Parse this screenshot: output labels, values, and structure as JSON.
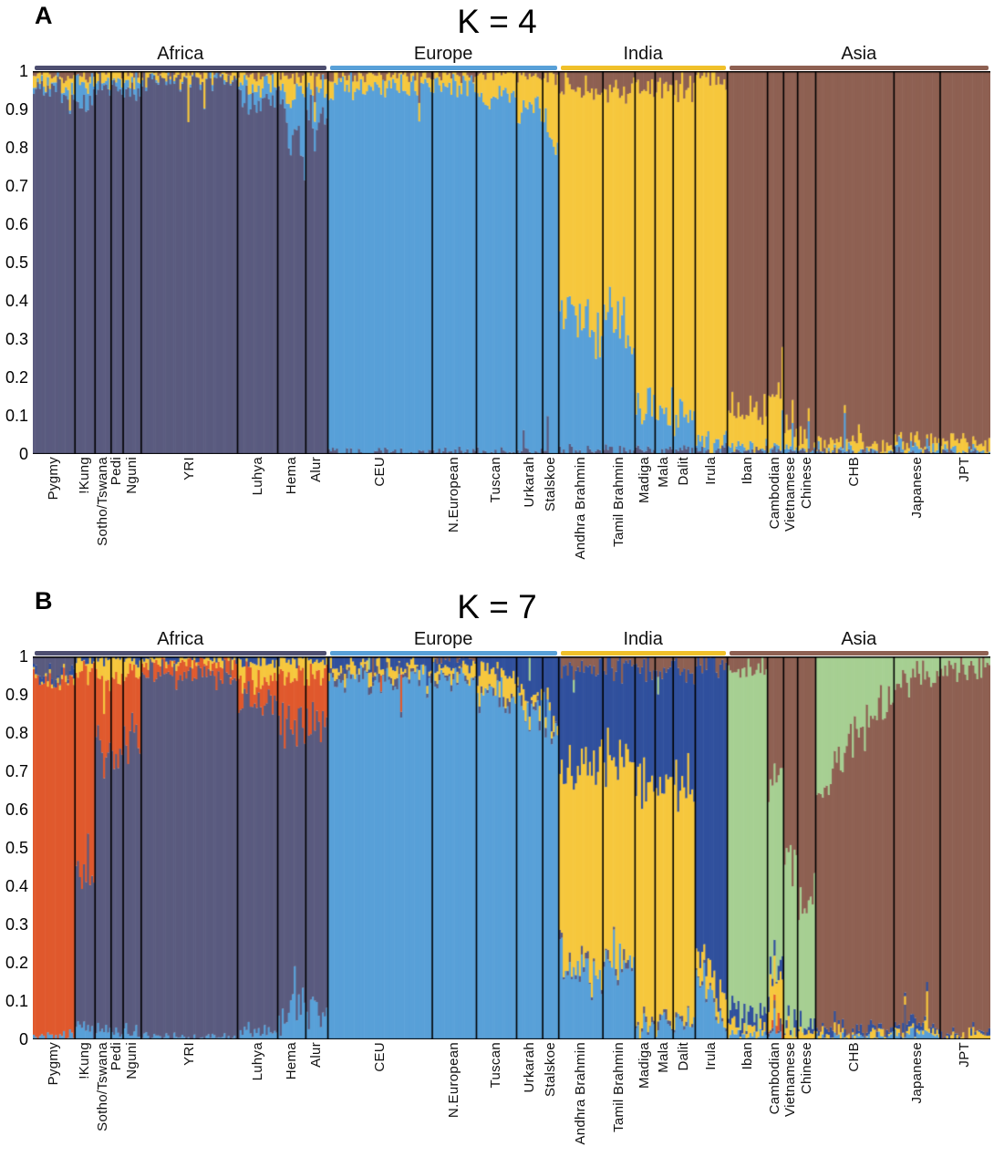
{
  "figure": {
    "background": "#ffffff"
  },
  "chart_data": [
    {
      "panel": "A",
      "title": "K = 4",
      "k": 4,
      "type": "bar",
      "subtype": "stacked admixture (STRUCTURE plot), one thin bar per individual",
      "ylim": [
        0,
        1
      ],
      "grid": false,
      "y_tick_labels": [
        "1",
        "0.9",
        "0.8",
        "0.7",
        "0.6",
        "0.5",
        "0.4",
        "0.3",
        "0.2",
        "0.1",
        "0"
      ],
      "stack_order_bottom_to_top": [
        "african",
        "european",
        "indian",
        "asian"
      ],
      "component_colors": {
        "african": "#5a5b7f",
        "european": "#58a0d8",
        "indian": "#f6c73d",
        "asian": "#8e6052"
      },
      "regions": [
        {
          "name": "Africa",
          "underline_color": "#4d4e70",
          "populations": [
            "Pygmy",
            "!Kung",
            "Sotho/Tswana",
            "Pedi",
            "Nguni",
            "YRI",
            "Luhya",
            "Hema",
            "Alur"
          ]
        },
        {
          "name": "Europe",
          "underline_color": "#58a0d8",
          "populations": [
            "CEU",
            "N.European",
            "Tuscan",
            "Urkarah",
            "Stalskoe"
          ]
        },
        {
          "name": "India",
          "underline_color": "#f0c02a",
          "populations": [
            "Andhra Brahmin",
            "Tamil Brahmin",
            "Madiga",
            "Mala",
            "Dalit",
            "Irula"
          ]
        },
        {
          "name": "Asia",
          "underline_color": "#8e6052",
          "populations": [
            "Iban",
            "Cambodian",
            "Vietnamese",
            "Chinese",
            "CHB",
            "Japanese",
            "JPT"
          ]
        }
      ],
      "populations": [
        {
          "name": "Pygmy",
          "n": 21,
          "fractions": {
            "african": 0.96,
            "european": 0.01,
            "indian": 0.02,
            "asian": 0.01
          }
        },
        {
          "name": "!Kung",
          "n": 10,
          "fractions": {
            "african": 0.92,
            "european": 0.05,
            "indian": 0.02,
            "asian": 0.01
          }
        },
        {
          "name": "Sotho/Tswana",
          "n": 8,
          "fractions": {
            "african": 0.955,
            "european": 0.02,
            "indian": 0.02,
            "asian": 0.005
          }
        },
        {
          "name": "Pedi",
          "n": 6,
          "fractions": {
            "african": 0.955,
            "european": 0.02,
            "indian": 0.02,
            "asian": 0.005
          }
        },
        {
          "name": "Nguni",
          "n": 9,
          "fractions": {
            "african": 0.96,
            "european": 0.015,
            "indian": 0.02,
            "asian": 0.005
          }
        },
        {
          "name": "YRI",
          "n": 48,
          "fractions": {
            "african": 0.975,
            "european": 0.004,
            "indian": 0.016,
            "asian": 0.005
          }
        },
        {
          "name": "Luhya",
          "n": 20,
          "fractions": {
            "african": 0.93,
            "european": 0.03,
            "indian": 0.03,
            "asian": 0.01
          }
        },
        {
          "name": "Hema",
          "n": 14,
          "fractions": {
            "african": [
              0.93,
              0.78
            ],
            "european": [
              0.02,
              0.16
            ],
            "indian": 0.04,
            "asian": 0.01
          }
        },
        {
          "name": "Alur",
          "n": 11,
          "fractions": {
            "african": 0.88,
            "european": 0.07,
            "indian": 0.04,
            "asian": 0.01
          }
        },
        {
          "name": "CEU",
          "n": 52,
          "fractions": {
            "african": 0.005,
            "european": 0.955,
            "indian": 0.03,
            "asian": 0.01
          }
        },
        {
          "name": "N.European",
          "n": 22,
          "fractions": {
            "african": 0.005,
            "european": 0.96,
            "indian": 0.025,
            "asian": 0.01
          }
        },
        {
          "name": "Tuscan",
          "n": 20,
          "fractions": {
            "african": 0.005,
            "european": 0.93,
            "indian": 0.055,
            "asian": 0.01
          }
        },
        {
          "name": "Urkarah",
          "n": 13,
          "fractions": {
            "african": 0.005,
            "european": 0.9,
            "indian": 0.085,
            "asian": 0.01
          }
        },
        {
          "name": "Stalskoe",
          "n": 8,
          "fractions": {
            "african": 0.005,
            "european": [
              0.87,
              0.77
            ],
            "indian": [
              0.11,
              0.21
            ],
            "asian": 0.015
          }
        },
        {
          "name": "Andhra Brahmin",
          "n": 22,
          "fractions": {
            "african": 0.01,
            "european": [
              0.38,
              0.3
            ],
            "indian": [
              0.56,
              0.64
            ],
            "asian": 0.05
          }
        },
        {
          "name": "Tamil Brahmin",
          "n": 16,
          "fractions": {
            "african": 0.01,
            "european": [
              0.36,
              0.28
            ],
            "indian": [
              0.58,
              0.66
            ],
            "asian": 0.05
          }
        },
        {
          "name": "Madiga",
          "n": 10,
          "fractions": {
            "african": 0.01,
            "european": 0.12,
            "indian": 0.83,
            "asian": 0.04
          }
        },
        {
          "name": "Mala",
          "n": 9,
          "fractions": {
            "african": 0.01,
            "european": 0.1,
            "indian": 0.85,
            "asian": 0.04
          }
        },
        {
          "name": "Dalit",
          "n": 11,
          "fractions": {
            "african": 0.01,
            "european": 0.1,
            "indian": 0.85,
            "asian": 0.04
          }
        },
        {
          "name": "Irula",
          "n": 16,
          "fractions": {
            "african": 0.01,
            "european": 0.02,
            "indian": 0.95,
            "asian": 0.02
          }
        },
        {
          "name": "Iban",
          "n": 20,
          "fractions": {
            "african": 0.01,
            "european": 0.01,
            "indian": 0.09,
            "asian": 0.89
          }
        },
        {
          "name": "Cambodian",
          "n": 8,
          "fractions": {
            "african": 0.01,
            "european": 0.01,
            "indian": 0.14,
            "asian": 0.84
          }
        },
        {
          "name": "Vietnamese",
          "n": 7,
          "fractions": {
            "african": 0.005,
            "european": 0.01,
            "indian": 0.045,
            "asian": 0.94
          }
        },
        {
          "name": "Chinese",
          "n": 9,
          "fractions": {
            "african": 0.005,
            "european": 0.005,
            "indian": 0.03,
            "asian": 0.96
          }
        },
        {
          "name": "CHB",
          "n": 39,
          "fractions": {
            "african": 0.004,
            "european": 0.006,
            "indian": 0.02,
            "asian": 0.97
          }
        },
        {
          "name": "Japanese",
          "n": 23,
          "fractions": {
            "african": 0.005,
            "european": 0.015,
            "indian": 0.02,
            "asian": 0.96
          }
        },
        {
          "name": "JPT",
          "n": 25,
          "fractions": {
            "african": 0.004,
            "european": 0.006,
            "indian": 0.02,
            "asian": 0.97
          }
        }
      ]
    },
    {
      "panel": "B",
      "title": "K = 7",
      "k": 7,
      "type": "bar",
      "subtype": "stacked admixture (STRUCTURE plot), one thin bar per individual",
      "ylim": [
        0,
        1
      ],
      "grid": false,
      "y_tick_labels": [
        "1",
        "0.9",
        "0.8",
        "0.7",
        "0.6",
        "0.5",
        "0.4",
        "0.3",
        "0.2",
        "0.1",
        "0"
      ],
      "stack_order_bottom_to_top": [
        "blue",
        "slate",
        "orange",
        "yellow",
        "navy",
        "green",
        "brown"
      ],
      "component_colors": {
        "blue": "#58a0d8",
        "slate": "#5a5b7f",
        "orange": "#e0592d",
        "yellow": "#f6c73d",
        "navy": "#30509d",
        "green": "#a6cf92",
        "brown": "#8e6052"
      },
      "regions": [
        {
          "name": "Africa",
          "underline_color": "#4d4e70",
          "populations": [
            "Pygmy",
            "!Kung",
            "Sotho/Tswana",
            "Pedi",
            "Nguni",
            "YRI",
            "Luhya",
            "Hema",
            "Alur"
          ]
        },
        {
          "name": "Europe",
          "underline_color": "#58a0d8",
          "populations": [
            "CEU",
            "N.European",
            "Tuscan",
            "Urkarah",
            "Stalskoe"
          ]
        },
        {
          "name": "India",
          "underline_color": "#f0c02a",
          "populations": [
            "Andhra Brahmin",
            "Tamil Brahmin",
            "Madiga",
            "Mala",
            "Dalit",
            "Irula"
          ]
        },
        {
          "name": "Asia",
          "underline_color": "#8e6052",
          "populations": [
            "Iban",
            "Cambodian",
            "Vietnamese",
            "Chinese",
            "CHB",
            "Japanese",
            "JPT"
          ]
        }
      ],
      "populations": [
        {
          "name": "Pygmy",
          "n": 21,
          "stack_order": [
            "blue",
            "orange",
            "yellow",
            "navy",
            "green",
            "brown",
            "slate"
          ],
          "fractions": {
            "orange": 0.92,
            "slate": 0.05,
            "blue": 0.01,
            "yellow": 0.01,
            "navy": 0.01
          }
        },
        {
          "name": "!Kung",
          "n": 10,
          "fractions": {
            "slate": 0.42,
            "orange": 0.51,
            "blue": 0.03,
            "yellow": 0.03,
            "navy": 0.01
          }
        },
        {
          "name": "Sotho/Tswana",
          "n": 8,
          "fractions": {
            "slate": 0.74,
            "orange": 0.18,
            "yellow": 0.05,
            "blue": 0.02,
            "navy": 0.01
          }
        },
        {
          "name": "Pedi",
          "n": 6,
          "fractions": {
            "slate": 0.72,
            "orange": 0.2,
            "yellow": 0.05,
            "blue": 0.02,
            "navy": 0.01
          }
        },
        {
          "name": "Nguni",
          "n": 9,
          "fractions": {
            "slate": 0.76,
            "orange": 0.18,
            "yellow": 0.03,
            "blue": 0.02,
            "navy": 0.01
          }
        },
        {
          "name": "YRI",
          "n": 48,
          "fractions": {
            "slate": 0.95,
            "orange": 0.03,
            "yellow": 0.01,
            "blue": 0.005,
            "navy": 0.005
          }
        },
        {
          "name": "Luhya",
          "n": 20,
          "fractions": {
            "slate": 0.87,
            "orange": 0.06,
            "yellow": 0.04,
            "blue": 0.02,
            "navy": 0.01
          }
        },
        {
          "name": "Hema",
          "n": 14,
          "fractions": {
            "slate": [
              0.78,
              0.68
            ],
            "orange": 0.14,
            "blue": [
              0.03,
              0.13
            ],
            "yellow": 0.04,
            "navy": 0.01
          }
        },
        {
          "name": "Alur",
          "n": 11,
          "fractions": {
            "slate": 0.76,
            "orange": 0.13,
            "blue": 0.07,
            "yellow": 0.03,
            "navy": 0.01
          }
        },
        {
          "name": "CEU",
          "n": 52,
          "fractions": {
            "blue": 0.95,
            "yellow": 0.02,
            "navy": 0.02,
            "slate": 0.01
          }
        },
        {
          "name": "N.European",
          "n": 22,
          "fractions": {
            "blue": 0.95,
            "yellow": 0.02,
            "navy": 0.02,
            "slate": 0.005,
            "brown": 0.005
          }
        },
        {
          "name": "Tuscan",
          "n": 20,
          "fractions": {
            "blue": 0.89,
            "yellow": 0.06,
            "navy": 0.04,
            "slate": 0.01
          }
        },
        {
          "name": "Urkarah",
          "n": 13,
          "fractions": {
            "blue": 0.87,
            "navy": 0.09,
            "yellow": 0.03,
            "slate": 0.01
          }
        },
        {
          "name": "Stalskoe",
          "n": 8,
          "fractions": {
            "blue": [
              0.85,
              0.75
            ],
            "navy": [
              0.11,
              0.21
            ],
            "yellow": 0.02,
            "slate": 0.01
          }
        },
        {
          "name": "Andhra Brahmin",
          "n": 22,
          "fractions": {
            "blue": [
              0.24,
              0.15
            ],
            "yellow": [
              0.46,
              0.55
            ],
            "navy": 0.26,
            "brown": 0.03,
            "slate": 0.01
          }
        },
        {
          "name": "Tamil Brahmin",
          "n": 16,
          "fractions": {
            "blue": 0.19,
            "yellow": 0.51,
            "navy": 0.26,
            "brown": 0.03,
            "slate": 0.01
          }
        },
        {
          "name": "Madiga",
          "n": 10,
          "fractions": {
            "blue": 0.04,
            "yellow": 0.6,
            "navy": 0.31,
            "brown": 0.04,
            "slate": 0.01
          }
        },
        {
          "name": "Mala",
          "n": 9,
          "fractions": {
            "blue": 0.04,
            "yellow": 0.6,
            "navy": 0.31,
            "brown": 0.04,
            "slate": 0.01
          }
        },
        {
          "name": "Dalit",
          "n": 11,
          "fractions": {
            "blue": 0.04,
            "yellow": 0.6,
            "navy": 0.3,
            "brown": 0.05,
            "slate": 0.01
          }
        },
        {
          "name": "Irula",
          "n": 16,
          "fractions": {
            "blue": [
              0.18,
              0.02
            ],
            "yellow": 0.05,
            "navy": [
              0.73,
              0.9
            ],
            "brown": 0.02,
            "slate": 0.005
          }
        },
        {
          "name": "Iban",
          "n": 20,
          "fractions": {
            "green": 0.9,
            "navy": 0.04,
            "brown": 0.03,
            "yellow": 0.02,
            "blue": 0.01
          }
        },
        {
          "name": "Cambodian",
          "n": 8,
          "fractions": {
            "green": 0.5,
            "brown": 0.32,
            "yellow": 0.1,
            "navy": 0.04,
            "orange": 0.02,
            "slate": 0.01,
            "blue": 0.01
          }
        },
        {
          "name": "Vietnamese",
          "n": 7,
          "fractions": {
            "green": 0.44,
            "brown": 0.51,
            "yellow": 0.03,
            "navy": 0.02
          }
        },
        {
          "name": "Chinese",
          "n": 9,
          "fractions": {
            "green": 0.32,
            "brown": 0.64,
            "yellow": 0.02,
            "navy": 0.02
          }
        },
        {
          "name": "CHB",
          "n": 39,
          "stack_order": [
            "blue",
            "slate",
            "orange",
            "yellow",
            "navy",
            "brown",
            "green"
          ],
          "fractions": {
            "green": [
              0.35,
              0.08
            ],
            "brown": [
              0.62,
              0.9
            ],
            "yellow": 0.01,
            "navy": 0.01,
            "blue": 0.005
          }
        },
        {
          "name": "Japanese",
          "n": 23,
          "stack_order": [
            "blue",
            "slate",
            "orange",
            "yellow",
            "navy",
            "brown",
            "green"
          ],
          "fractions": {
            "brown": 0.9,
            "green": 0.07,
            "blue": 0.01,
            "yellow": 0.01,
            "navy": 0.01
          }
        },
        {
          "name": "JPT",
          "n": 25,
          "stack_order": [
            "blue",
            "slate",
            "orange",
            "yellow",
            "navy",
            "brown",
            "green"
          ],
          "fractions": {
            "brown": 0.95,
            "green": 0.03,
            "navy": 0.01,
            "yellow": 0.01
          }
        }
      ]
    }
  ]
}
